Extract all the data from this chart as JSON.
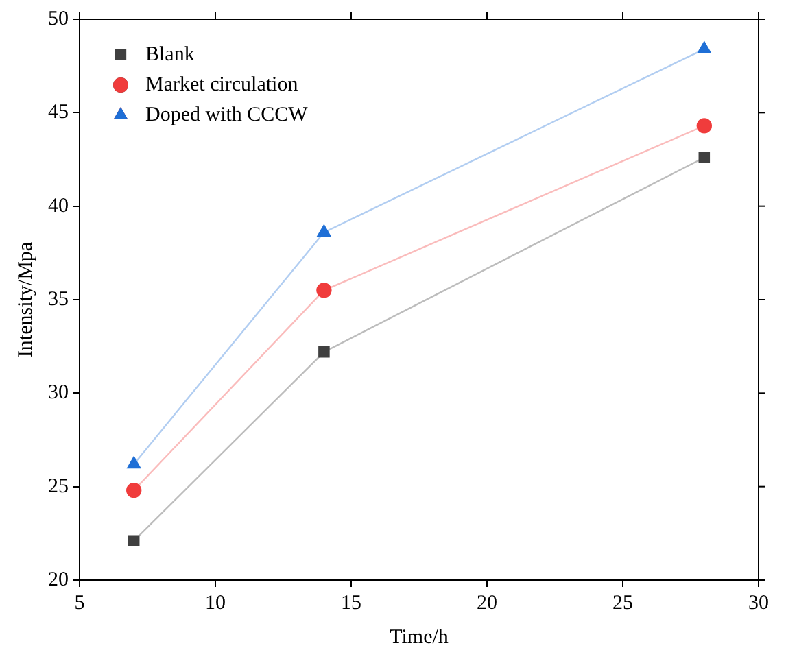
{
  "chart_data": {
    "type": "line",
    "xlabel": "Time/h",
    "ylabel": "Intensity/Mpa",
    "x": [
      7,
      14,
      28
    ],
    "series": [
      {
        "name": "Blank",
        "color": "#404040",
        "marker": "square",
        "values": [
          22.1,
          32.2,
          42.6
        ]
      },
      {
        "name": "Market circulation",
        "color": "#f03c3c",
        "marker": "circle",
        "values": [
          24.8,
          35.5,
          44.3
        ]
      },
      {
        "name": "Doped with CCCW",
        "color": "#1f6fd6",
        "marker": "triangle",
        "values": [
          26.2,
          38.6,
          48.4
        ]
      }
    ],
    "xlim": [
      5,
      30
    ],
    "xticks": [
      5,
      10,
      15,
      20,
      25,
      30
    ],
    "ylim": [
      20,
      50
    ],
    "yticks": [
      20,
      25,
      30,
      35,
      40,
      45,
      50
    ],
    "grid": false,
    "legend": "top left",
    "line_style": "solid"
  }
}
